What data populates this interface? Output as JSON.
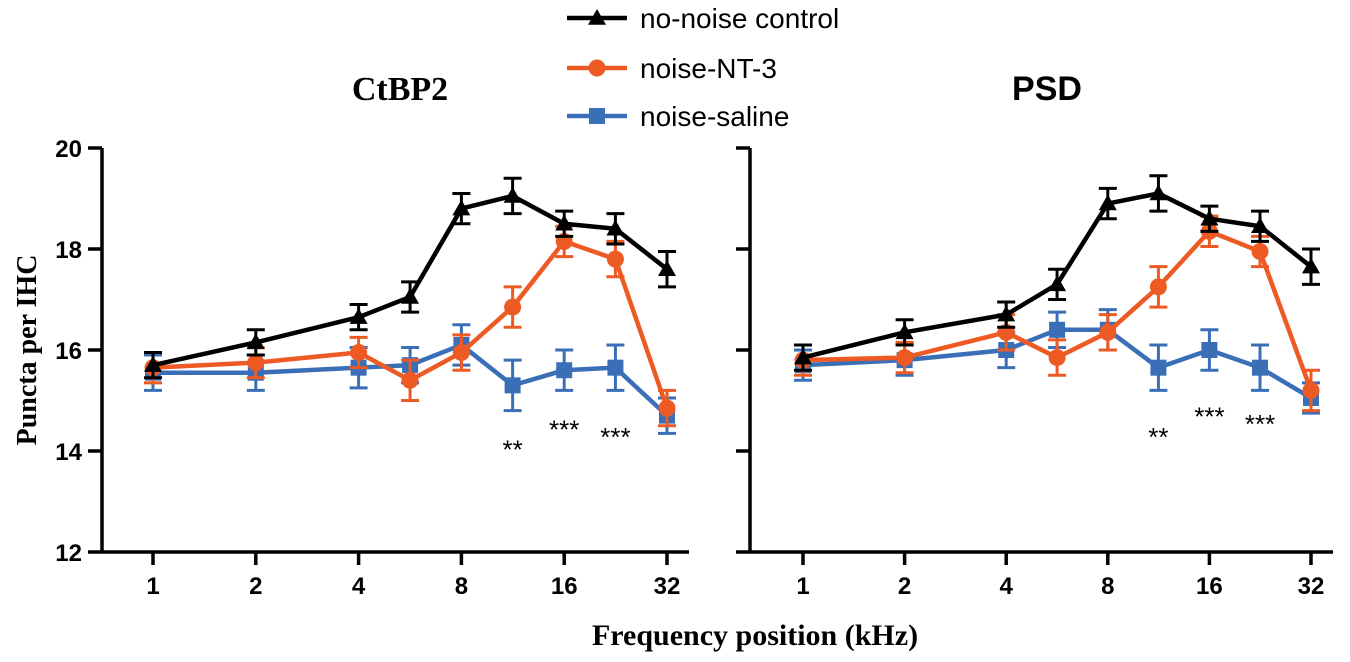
{
  "chart_data": {
    "type": "line",
    "xlabel": "Frequency position (kHz)",
    "ylabel": "Puncta per IHC",
    "ylim": [
      12,
      20
    ],
    "yticks": [
      12,
      14,
      16,
      18,
      20
    ],
    "x_scale": "log2",
    "x_ticks": [
      1,
      2,
      4,
      8,
      16,
      32
    ],
    "x_tick_labels": [
      "1",
      "2",
      "4",
      "8",
      "16",
      "32"
    ],
    "legend": {
      "placement": "top-center",
      "entries": [
        {
          "name": "no-noise control",
          "color": "#000000",
          "marker": "triangle"
        },
        {
          "name": "noise-NT-3",
          "color": "#EE5A24",
          "marker": "circle"
        },
        {
          "name": "noise-saline",
          "color": "#3A6FB8",
          "marker": "square"
        }
      ]
    },
    "panels": [
      {
        "title": "CtBP2",
        "show_y_tick_labels": true,
        "x": [
          1,
          2,
          4,
          5.66,
          8,
          11.3,
          16,
          22.6,
          32
        ],
        "series": [
          {
            "name": "no-noise control",
            "color": "#000000",
            "marker": "triangle",
            "values": [
              15.7,
              16.15,
              16.65,
              17.05,
              18.8,
              19.05,
              18.5,
              18.4,
              17.6
            ],
            "errors": [
              0.25,
              0.25,
              0.25,
              0.3,
              0.3,
              0.35,
              0.25,
              0.3,
              0.35
            ]
          },
          {
            "name": "noise-NT-3",
            "color": "#EE5A24",
            "marker": "circle",
            "values": [
              15.65,
              15.75,
              15.95,
              15.4,
              15.95,
              16.85,
              18.15,
              17.8,
              14.85
            ],
            "errors": [
              0.3,
              0.3,
              0.3,
              0.4,
              0.35,
              0.4,
              0.3,
              0.35,
              0.35
            ]
          },
          {
            "name": "noise-saline",
            "color": "#3A6FB8",
            "marker": "square",
            "values": [
              15.55,
              15.55,
              15.65,
              15.7,
              16.1,
              15.3,
              15.6,
              15.65,
              14.7
            ],
            "errors": [
              0.35,
              0.35,
              0.4,
              0.35,
              0.4,
              0.5,
              0.4,
              0.45,
              0.35
            ]
          }
        ],
        "annotations": [
          {
            "text": "**",
            "x": 11.3,
            "y": 14.05
          },
          {
            "text": "***",
            "x": 16,
            "y": 14.45
          },
          {
            "text": "***",
            "x": 22.6,
            "y": 14.3
          }
        ]
      },
      {
        "title": "PSD",
        "show_y_tick_labels": false,
        "x": [
          1,
          2,
          4,
          5.66,
          8,
          11.3,
          16,
          22.6,
          32
        ],
        "series": [
          {
            "name": "no-noise control",
            "color": "#000000",
            "marker": "triangle",
            "values": [
              15.85,
              16.35,
              16.7,
              17.3,
              18.9,
              19.1,
              18.6,
              18.45,
              17.65
            ],
            "errors": [
              0.25,
              0.25,
              0.25,
              0.3,
              0.3,
              0.35,
              0.25,
              0.3,
              0.35
            ]
          },
          {
            "name": "noise-NT-3",
            "color": "#EE5A24",
            "marker": "circle",
            "values": [
              15.8,
              15.85,
              16.35,
              15.85,
              16.35,
              17.25,
              18.35,
              17.95,
              15.2
            ],
            "errors": [
              0.3,
              0.3,
              0.35,
              0.35,
              0.35,
              0.4,
              0.3,
              0.3,
              0.4
            ]
          },
          {
            "name": "noise-saline",
            "color": "#3A6FB8",
            "marker": "square",
            "values": [
              15.7,
              15.8,
              16.0,
              16.4,
              16.4,
              15.65,
              16.0,
              15.65,
              15.05
            ],
            "errors": [
              0.3,
              0.3,
              0.35,
              0.35,
              0.4,
              0.45,
              0.4,
              0.45,
              0.3
            ]
          }
        ],
        "annotations": [
          {
            "text": "**",
            "x": 11.3,
            "y": 14.3
          },
          {
            "text": "***",
            "x": 16,
            "y": 14.7
          },
          {
            "text": "***",
            "x": 22.6,
            "y": 14.55
          }
        ]
      }
    ]
  }
}
